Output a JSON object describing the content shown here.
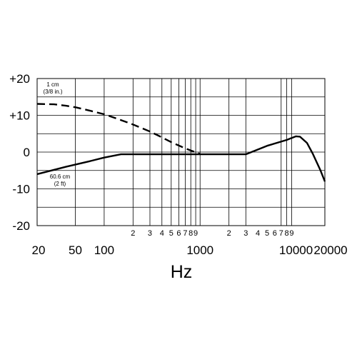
{
  "chart_data": {
    "type": "line",
    "title": "",
    "xlabel": "Hz",
    "ylabel": "",
    "x_scale": "log",
    "xlim": [
      20,
      20000
    ],
    "ylim": [
      -20,
      20
    ],
    "grid": true,
    "y_ticks": [
      "+20",
      "+10",
      "0",
      "-10",
      "-20"
    ],
    "y_tick_values": [
      20,
      10,
      0,
      -10,
      -20
    ],
    "x_ticks_main": [
      {
        "value": 20,
        "label": "20"
      },
      {
        "value": 50,
        "label": "50"
      },
      {
        "value": 100,
        "label": "100"
      },
      {
        "value": 1000,
        "label": "1000"
      },
      {
        "value": 10000,
        "label": "10000"
      },
      {
        "value": 20000,
        "label": "20000"
      }
    ],
    "x_ticks_minor": [
      {
        "value": 200,
        "label": "2"
      },
      {
        "value": 300,
        "label": "3"
      },
      {
        "value": 400,
        "label": "4"
      },
      {
        "value": 500,
        "label": "5"
      },
      {
        "value": 600,
        "label": "6"
      },
      {
        "value": 700,
        "label": "7"
      },
      {
        "value": 800,
        "label": "8"
      },
      {
        "value": 900,
        "label": "9"
      },
      {
        "value": 2000,
        "label": "2"
      },
      {
        "value": 3000,
        "label": "3"
      },
      {
        "value": 4000,
        "label": "4"
      },
      {
        "value": 5000,
        "label": "5"
      },
      {
        "value": 6000,
        "label": "6"
      },
      {
        "value": 7000,
        "label": "7"
      },
      {
        "value": 8000,
        "label": "8"
      },
      {
        "value": 9000,
        "label": "9"
      }
    ],
    "x_gridlines": [
      20,
      50,
      100,
      200,
      300,
      400,
      500,
      600,
      700,
      800,
      900,
      1000,
      2000,
      3000,
      7000,
      8000,
      9000,
      20000
    ],
    "y_gridlines": [
      20,
      15,
      10,
      5,
      0,
      -5,
      -10,
      -15,
      -20
    ],
    "series": [
      {
        "style": "dashed",
        "x": [
          20,
          30,
          40,
          50,
          70,
          100,
          150,
          200,
          300,
          400,
          500,
          700,
          1000
        ],
        "y": [
          13.1,
          13.0,
          12.6,
          12.2,
          11.3,
          10.3,
          8.7,
          7.5,
          5.6,
          4.0,
          2.7,
          1.0,
          -0.5
        ]
      },
      {
        "style": "solid",
        "x": [
          20,
          40,
          70,
          100,
          150,
          200,
          500,
          1000,
          2000,
          3000,
          5000,
          8000,
          10000,
          11000,
          13000,
          15000,
          18000,
          20000
        ],
        "y": [
          -6.0,
          -4.0,
          -2.5,
          -1.5,
          -0.6,
          -0.6,
          -0.6,
          -0.6,
          -0.6,
          -0.6,
          1.7,
          3.3,
          4.3,
          4.2,
          2.5,
          -0.5,
          -5.0,
          -8.0
        ]
      }
    ],
    "annotations": [
      {
        "lines": [
          "1 cm",
          "(3/8 in.)"
        ],
        "series_index": 0
      },
      {
        "lines": [
          "60.6 cm",
          "(2 ft)"
        ],
        "series_index": 1
      }
    ]
  }
}
